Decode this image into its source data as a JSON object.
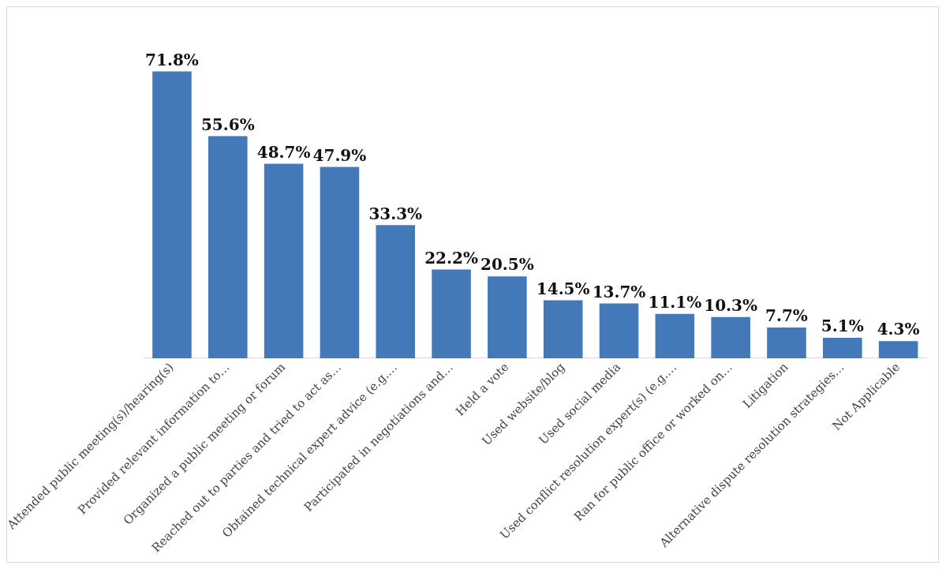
{
  "chart_data": {
    "type": "bar",
    "categories": [
      "Attended public meeting(s)/hearing(s)",
      "Provided relevant information to…",
      "Organized a public meeting or forum",
      "Reached out to parties and tried to act as…",
      "Obtained technical expert advice (e.g.…",
      "Participated in negotiations and…",
      "Held a vote",
      "Used website/blog",
      "Used social media",
      "Used conflict resolution expert(s) (e.g.…",
      "Ran for public office or worked on…",
      "Litigation",
      "Alternative dispute resolution strategies…",
      "Not Applicable"
    ],
    "values": [
      71.8,
      55.6,
      48.7,
      47.9,
      33.3,
      22.2,
      20.5,
      14.5,
      13.7,
      11.1,
      10.3,
      7.7,
      5.1,
      4.3
    ],
    "value_labels": [
      "71.8%",
      "55.6%",
      "48.7%",
      "47.9%",
      "33.3%",
      "22.2%",
      "20.5%",
      "14.5%",
      "13.7%",
      "11.1%",
      "10.3%",
      "7.7%",
      "5.1%",
      "4.3%"
    ],
    "color": "#4479b9",
    "grid": false,
    "legend": false
  }
}
